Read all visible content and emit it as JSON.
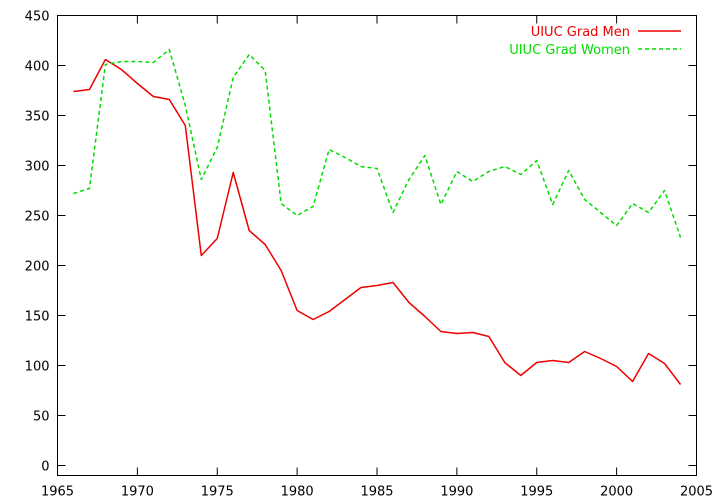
{
  "chart_data": {
    "type": "line",
    "title": "",
    "xlabel": "",
    "ylabel": "",
    "xlim": [
      1965,
      2005
    ],
    "ylim": [
      -10,
      450
    ],
    "xticks": [
      1965,
      1970,
      1975,
      1980,
      1985,
      1990,
      1995,
      2000,
      2005
    ],
    "yticks": [
      0,
      50,
      100,
      150,
      200,
      250,
      300,
      350,
      400,
      450
    ],
    "grid": false,
    "legend_position": "top-right",
    "series": [
      {
        "name": "UIUC Grad Men",
        "color": "#ee0000",
        "dash": "solid",
        "x": [
          1966,
          1967,
          1968,
          1969,
          1970,
          1971,
          1972,
          1973,
          1974,
          1975,
          1976,
          1977,
          1978,
          1979,
          1980,
          1981,
          1982,
          1983,
          1984,
          1985,
          1986,
          1987,
          1988,
          1989,
          1990,
          1991,
          1992,
          1993,
          1994,
          1995,
          1996,
          1997,
          1998,
          1999,
          2000,
          2001,
          2002,
          2003,
          2004
        ],
        "y": [
          374,
          376,
          406,
          396,
          382,
          369,
          366,
          340,
          210,
          227,
          293,
          235,
          221,
          195,
          155,
          146,
          154,
          166,
          178,
          180,
          183,
          163,
          149,
          134,
          132,
          133,
          129,
          103,
          90,
          103,
          105,
          103,
          114,
          107,
          99,
          84,
          112,
          102,
          81
        ]
      },
      {
        "name": "UIUC Grad Women",
        "color": "#00dd00",
        "dash": "dashed",
        "x": [
          1966,
          1967,
          1968,
          1969,
          1970,
          1971,
          1972,
          1973,
          1974,
          1975,
          1976,
          1977,
          1978,
          1979,
          1980,
          1981,
          1982,
          1983,
          1984,
          1985,
          1986,
          1987,
          1988,
          1989,
          1990,
          1991,
          1992,
          1993,
          1994,
          1995,
          1996,
          1997,
          1998,
          1999,
          2000,
          2001,
          2002,
          2003,
          2004
        ],
        "y": [
          272,
          277,
          401,
          404,
          404,
          403,
          416,
          360,
          286,
          318,
          388,
          411,
          395,
          262,
          250,
          259,
          316,
          308,
          299,
          297,
          253,
          286,
          310,
          261,
          294,
          284,
          294,
          299,
          291,
          305,
          261,
          295,
          266,
          253,
          240,
          262,
          253,
          275,
          228
        ]
      }
    ]
  }
}
